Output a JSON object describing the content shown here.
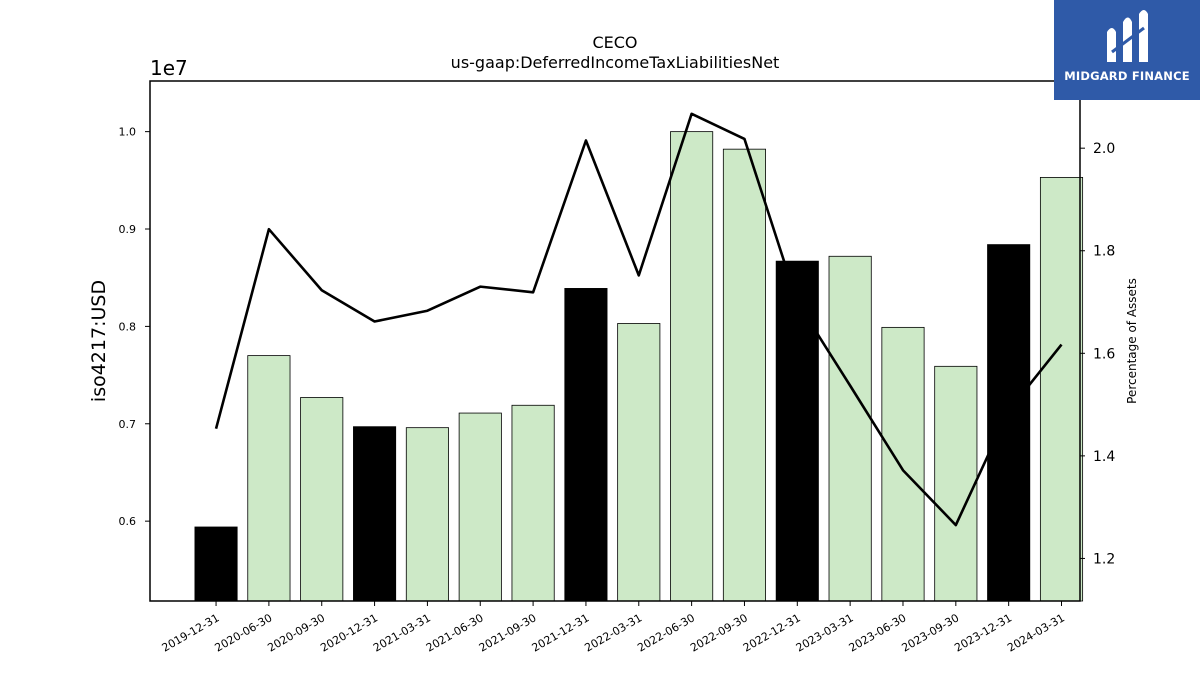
{
  "chart_data": {
    "type": "bar",
    "title": "CECO",
    "subtitle": "us-gaap:DeferredIncomeTaxLiabilitiesNet",
    "ylabel": "iso4217:USD",
    "y_scale_label": "1e7",
    "y2label": "Percentage of Assets",
    "categories": [
      "2019-12-31",
      "2020-06-30",
      "2020-09-30",
      "2020-12-31",
      "2021-03-31",
      "2021-06-30",
      "2021-09-30",
      "2021-12-31",
      "2022-03-31",
      "2022-06-30",
      "2022-09-30",
      "2022-12-31",
      "2023-03-31",
      "2023-06-30",
      "2023-09-30",
      "2023-12-31",
      "2024-03-31"
    ],
    "series": [
      {
        "values": [
          5940000,
          7700000,
          7270000,
          6970000,
          6960000,
          7110000,
          7190000,
          8390000,
          8030000,
          10000000,
          9820000,
          8670000,
          8720000,
          7990000,
          7590000,
          8840000,
          9530000
        ],
        "highlight": [
          true,
          false,
          false,
          true,
          false,
          false,
          false,
          true,
          false,
          false,
          false,
          true,
          false,
          false,
          false,
          true,
          false
        ],
        "color_fill": "#cde9c7",
        "color_highlight": "#000000"
      },
      {
        "type": "line",
        "axis": "right",
        "values": [
          1.453,
          1.842,
          1.723,
          1.662,
          1.683,
          1.73,
          1.719,
          2.015,
          1.752,
          2.067,
          2.018,
          1.7,
          1.537,
          1.372,
          1.265,
          1.488,
          1.617
        ],
        "color": "#000000"
      }
    ],
    "ylim": [
      5180000,
      10520000
    ],
    "yticks": [
      6000000,
      7000000,
      8000000,
      9000000,
      10000000
    ],
    "yticklabels": [
      "0.6",
      "0.7",
      "0.8",
      "0.9",
      "1.0"
    ],
    "y2lim": [
      1.117,
      2.131
    ],
    "y2ticks": [
      1.2,
      1.4,
      1.6,
      1.8,
      2.0
    ],
    "y2ticklabels": [
      "1.2",
      "1.4",
      "1.6",
      "1.8",
      "2.0"
    ],
    "grid": false
  },
  "logo": {
    "text": "MIDGARD FINANCE",
    "bg_color": "#2f5aa8"
  }
}
